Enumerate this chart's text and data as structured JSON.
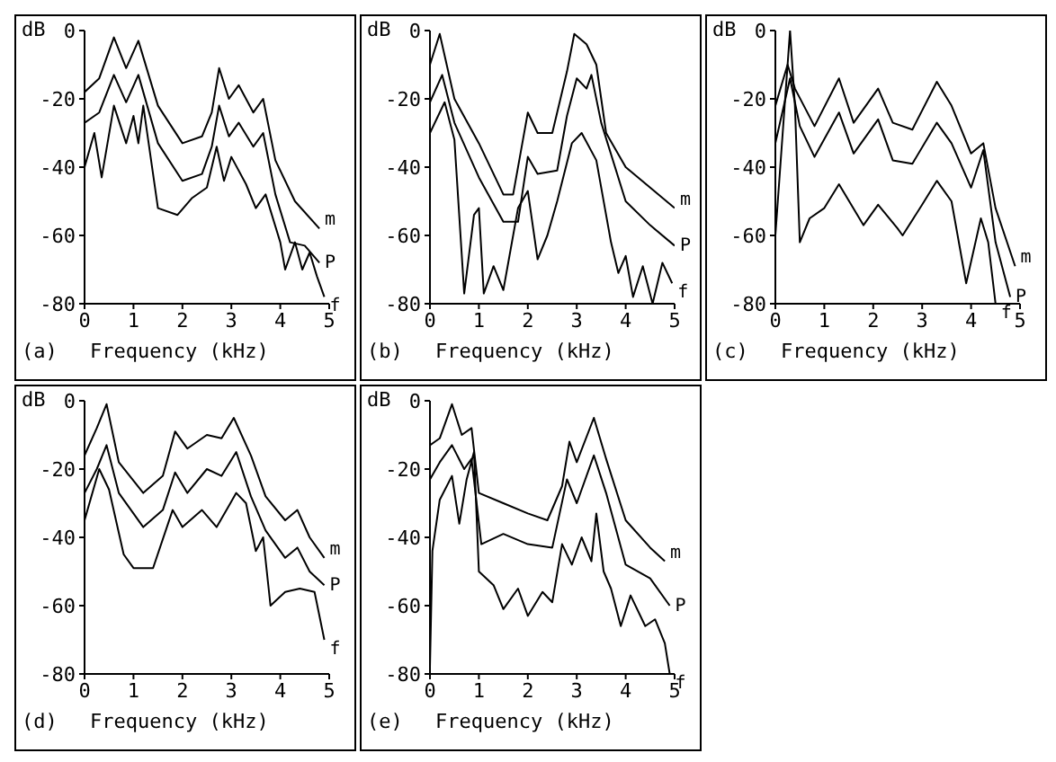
{
  "chart_data": [
    {
      "type": "line",
      "title": "(a)",
      "xlabel": "Frequency (kHz)",
      "ylabel": "dB",
      "xlim": [
        0,
        5
      ],
      "xticks": [
        0,
        1,
        2,
        3,
        4,
        5
      ],
      "ylim": [
        -80,
        0
      ],
      "yticks": [
        -80,
        -60,
        -40,
        -20,
        0
      ],
      "grid": false,
      "legend": false,
      "series": [
        {
          "name": "m",
          "color": "#000000",
          "x": [
            0,
            0.3,
            0.6,
            0.85,
            1.1,
            1.5,
            2.0,
            2.4,
            2.6,
            2.75,
            2.95,
            3.15,
            3.45,
            3.65,
            3.9,
            4.3,
            4.8
          ],
          "values": [
            -18,
            -14,
            -2,
            -11,
            -3,
            -22,
            -33,
            -31,
            -24,
            -11,
            -20,
            -16,
            -24,
            -20,
            -38,
            -50,
            -58
          ]
        },
        {
          "name": "P",
          "color": "#000000",
          "x": [
            0,
            0.3,
            0.6,
            0.85,
            1.1,
            1.5,
            2.0,
            2.4,
            2.6,
            2.75,
            2.95,
            3.15,
            3.45,
            3.65,
            3.9,
            4.2,
            4.5,
            4.8
          ],
          "values": [
            -27,
            -24,
            -13,
            -21,
            -13,
            -33,
            -44,
            -42,
            -34,
            -22,
            -31,
            -27,
            -34,
            -30,
            -48,
            -62,
            -63,
            -68
          ]
        },
        {
          "name": "f",
          "color": "#000000",
          "x": [
            0,
            0.2,
            0.35,
            0.6,
            0.85,
            1.0,
            1.1,
            1.2,
            1.5,
            1.9,
            2.2,
            2.5,
            2.7,
            2.85,
            3.0,
            3.3,
            3.5,
            3.7,
            4.0,
            4.1,
            4.3,
            4.45,
            4.6,
            4.75,
            4.9
          ],
          "values": [
            -40,
            -30,
            -43,
            -22,
            -33,
            -25,
            -33,
            -22,
            -52,
            -54,
            -49,
            -46,
            -34,
            -44,
            -37,
            -45,
            -52,
            -48,
            -62,
            -70,
            -62,
            -70,
            -65,
            -72,
            -78
          ]
        }
      ]
    },
    {
      "type": "line",
      "title": "(b)",
      "xlabel": "Frequency (kHz)",
      "ylabel": "dB",
      "xlim": [
        0,
        5
      ],
      "xticks": [
        0,
        1,
        2,
        3,
        4,
        5
      ],
      "ylim": [
        -80,
        0
      ],
      "yticks": [
        -80,
        -60,
        -40,
        -20,
        0
      ],
      "grid": false,
      "legend": false,
      "series": [
        {
          "name": "m",
          "color": "#000000",
          "x": [
            0,
            0.2,
            0.5,
            1.0,
            1.5,
            1.7,
            1.9,
            2.0,
            2.2,
            2.5,
            2.8,
            2.95,
            3.2,
            3.4,
            3.6,
            4.0,
            4.5,
            5.0
          ],
          "values": [
            -10,
            -1,
            -20,
            -33,
            -48,
            -48,
            -32,
            -24,
            -30,
            -30,
            -12,
            -1,
            -4,
            -10,
            -30,
            -40,
            -46,
            -52
          ]
        },
        {
          "name": "P",
          "color": "#000000",
          "x": [
            0,
            0.25,
            0.5,
            1.0,
            1.5,
            1.8,
            2.0,
            2.2,
            2.6,
            2.8,
            3.0,
            3.2,
            3.3,
            3.5,
            4.0,
            4.5,
            5.0
          ],
          "values": [
            -21,
            -13,
            -27,
            -43,
            -56,
            -56,
            -37,
            -42,
            -41,
            -25,
            -14,
            -17,
            -13,
            -27,
            -50,
            -57,
            -63
          ]
        },
        {
          "name": "f",
          "color": "#000000",
          "x": [
            0,
            0.3,
            0.5,
            0.7,
            0.9,
            1.0,
            1.1,
            1.3,
            1.5,
            1.8,
            2.0,
            2.2,
            2.4,
            2.6,
            2.9,
            3.1,
            3.4,
            3.7,
            3.85,
            4.0,
            4.15,
            4.35,
            4.55,
            4.75,
            4.95
          ],
          "values": [
            -30,
            -21,
            -32,
            -77,
            -54,
            -52,
            -77,
            -69,
            -76,
            -52,
            -47,
            -67,
            -60,
            -50,
            -33,
            -30,
            -38,
            -62,
            -71,
            -66,
            -78,
            -69,
            -80,
            -68,
            -74
          ]
        }
      ]
    },
    {
      "type": "line",
      "title": "(c)",
      "xlabel": "Frequency (kHz)",
      "ylabel": "dB",
      "xlim": [
        0,
        5
      ],
      "xticks": [
        0,
        1,
        2,
        3,
        4,
        5
      ],
      "ylim": [
        -80,
        0
      ],
      "yticks": [
        -80,
        -60,
        -40,
        -20,
        0
      ],
      "grid": false,
      "legend": false,
      "series": [
        {
          "name": "m",
          "color": "#000000",
          "x": [
            0,
            0.25,
            0.4,
            0.8,
            1.3,
            1.6,
            2.1,
            2.4,
            2.8,
            3.3,
            3.6,
            4.0,
            4.25,
            4.5,
            4.9
          ],
          "values": [
            -22,
            -10,
            -17,
            -28,
            -14,
            -27,
            -17,
            -27,
            -29,
            -15,
            -22,
            -36,
            -33,
            -52,
            -69
          ]
        },
        {
          "name": "P",
          "color": "#000000",
          "x": [
            0,
            0.3,
            0.5,
            0.8,
            1.3,
            1.6,
            2.1,
            2.4,
            2.8,
            3.3,
            3.6,
            4.0,
            4.25,
            4.5,
            4.8
          ],
          "values": [
            -33,
            -14,
            -28,
            -37,
            -24,
            -36,
            -26,
            -38,
            -39,
            -27,
            -33,
            -46,
            -35,
            -62,
            -78
          ]
        },
        {
          "name": "f",
          "color": "#000000",
          "x": [
            0,
            0.1,
            0.3,
            0.4,
            0.5,
            0.7,
            1.0,
            1.3,
            1.8,
            2.1,
            2.5,
            2.6,
            3.0,
            3.3,
            3.6,
            3.9,
            4.2,
            4.35,
            4.5
          ],
          "values": [
            -60,
            -40,
            0,
            -22,
            -62,
            -55,
            -52,
            -45,
            -57,
            -51,
            -58,
            -60,
            -51,
            -44,
            -50,
            -74,
            -55,
            -62,
            -80
          ]
        }
      ]
    },
    {
      "type": "line",
      "title": "(d)",
      "xlabel": "Frequency (kHz)",
      "ylabel": "dB",
      "xlim": [
        0,
        5
      ],
      "xticks": [
        0,
        1,
        2,
        3,
        4,
        5
      ],
      "ylim": [
        -80,
        0
      ],
      "yticks": [
        -80,
        -60,
        -40,
        -20,
        0
      ],
      "grid": false,
      "legend": false,
      "series": [
        {
          "name": "m",
          "color": "#000000",
          "x": [
            0,
            0.25,
            0.45,
            0.7,
            1.2,
            1.6,
            1.85,
            2.1,
            2.5,
            2.8,
            3.05,
            3.4,
            3.7,
            4.1,
            4.35,
            4.6,
            4.9
          ],
          "values": [
            -16,
            -8,
            -1,
            -18,
            -27,
            -22,
            -9,
            -14,
            -10,
            -11,
            -5,
            -16,
            -28,
            -35,
            -32,
            -40,
            -46
          ]
        },
        {
          "name": "P",
          "color": "#000000",
          "x": [
            0,
            0.25,
            0.45,
            0.7,
            1.2,
            1.6,
            1.85,
            2.1,
            2.5,
            2.8,
            3.1,
            3.4,
            3.7,
            4.1,
            4.35,
            4.6,
            4.9
          ],
          "values": [
            -27,
            -20,
            -13,
            -27,
            -37,
            -32,
            -21,
            -27,
            -20,
            -22,
            -15,
            -28,
            -38,
            -46,
            -43,
            -50,
            -54
          ]
        },
        {
          "name": "f",
          "color": "#000000",
          "x": [
            0,
            0.3,
            0.5,
            0.8,
            1.0,
            1.4,
            1.8,
            2.0,
            2.4,
            2.7,
            3.1,
            3.3,
            3.5,
            3.65,
            3.8,
            4.1,
            4.4,
            4.7,
            4.9
          ],
          "values": [
            -35,
            -20,
            -26,
            -45,
            -49,
            -49,
            -32,
            -37,
            -32,
            -37,
            -27,
            -30,
            -44,
            -40,
            -60,
            -56,
            -55,
            -56,
            -70
          ]
        }
      ]
    },
    {
      "type": "line",
      "title": "(e)",
      "xlabel": "Frequency (kHz)",
      "ylabel": "dB",
      "xlim": [
        0,
        5
      ],
      "xticks": [
        0,
        1,
        2,
        3,
        4,
        5
      ],
      "ylim": [
        -80,
        0
      ],
      "yticks": [
        -80,
        -60,
        -40,
        -20,
        0
      ],
      "grid": false,
      "legend": false,
      "series": [
        {
          "name": "m",
          "color": "#000000",
          "x": [
            0,
            0.2,
            0.45,
            0.65,
            0.85,
            1.0,
            1.5,
            2.0,
            2.4,
            2.7,
            2.85,
            3.0,
            3.35,
            3.6,
            4.0,
            4.5,
            4.8
          ],
          "values": [
            -13,
            -11,
            -1,
            -10,
            -8,
            -27,
            -30,
            -33,
            -35,
            -25,
            -12,
            -18,
            -5,
            -17,
            -35,
            -43,
            -47
          ]
        },
        {
          "name": "P",
          "color": "#000000",
          "x": [
            0,
            0.2,
            0.45,
            0.7,
            0.85,
            1.05,
            1.5,
            2.0,
            2.5,
            2.8,
            3.0,
            3.35,
            3.6,
            4.0,
            4.5,
            4.9
          ],
          "values": [
            -23,
            -18,
            -13,
            -20,
            -17,
            -42,
            -39,
            -42,
            -43,
            -23,
            -30,
            -16,
            -27,
            -48,
            -52,
            -60
          ]
        },
        {
          "name": "f",
          "color": "#000000",
          "x": [
            0,
            0.05,
            0.2,
            0.45,
            0.6,
            0.75,
            0.9,
            1.0,
            1.3,
            1.5,
            1.8,
            2.0,
            2.3,
            2.5,
            2.7,
            2.9,
            3.1,
            3.3,
            3.4,
            3.55,
            3.7,
            3.9,
            4.1,
            4.4,
            4.6,
            4.8,
            4.9
          ],
          "values": [
            -78,
            -44,
            -29,
            -22,
            -36,
            -23,
            -15,
            -50,
            -54,
            -61,
            -55,
            -63,
            -56,
            -59,
            -42,
            -48,
            -40,
            -47,
            -33,
            -50,
            -55,
            -66,
            -57,
            -66,
            -64,
            -71,
            -80
          ]
        }
      ]
    }
  ]
}
